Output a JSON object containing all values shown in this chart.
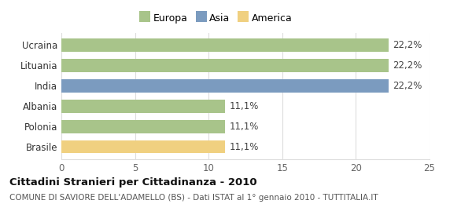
{
  "categories": [
    "Brasile",
    "Polonia",
    "Albania",
    "India",
    "Lituania",
    "Ucraina"
  ],
  "values": [
    11.1,
    11.1,
    11.1,
    22.2,
    22.2,
    22.2
  ],
  "labels": [
    "11,1%",
    "11,1%",
    "11,1%",
    "22,2%",
    "22,2%",
    "22,2%"
  ],
  "bar_colors": [
    "#f0d080",
    "#a8c48a",
    "#a8c48a",
    "#7b9bbf",
    "#a8c48a",
    "#a8c48a"
  ],
  "legend": [
    {
      "label": "Europa",
      "color": "#a8c48a"
    },
    {
      "label": "Asia",
      "color": "#7b9bbf"
    },
    {
      "label": "America",
      "color": "#f0d080"
    }
  ],
  "xlim": [
    0,
    25
  ],
  "xticks": [
    0,
    5,
    10,
    15,
    20,
    25
  ],
  "title_bold": "Cittadini Stranieri per Cittadinanza - 2010",
  "subtitle": "COMUNE DI SAVIORE DELL'ADAMELLO (BS) - Dati ISTAT al 1° gennaio 2010 - TUTTITALIA.IT",
  "background_color": "#ffffff",
  "grid_color": "#dddddd",
  "bar_label_fontsize": 8.5,
  "tick_fontsize": 8.5,
  "ylabel_fontsize": 8.5,
  "title_fontsize": 9.5,
  "subtitle_fontsize": 7.5,
  "legend_fontsize": 9
}
